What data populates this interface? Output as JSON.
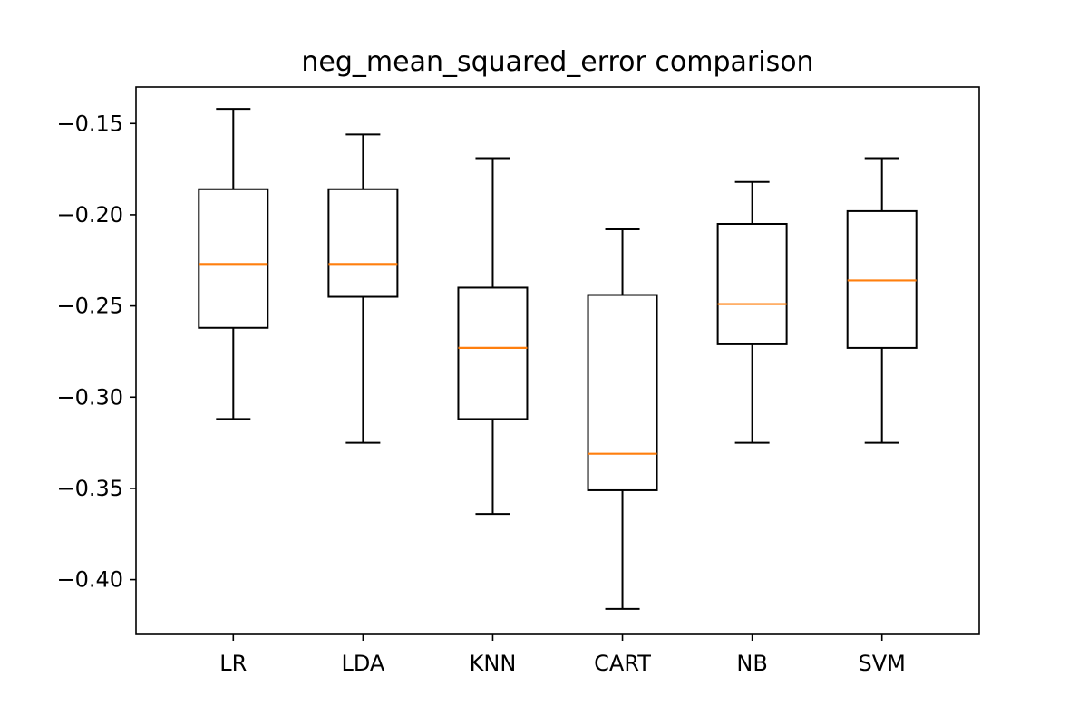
{
  "chart_data": {
    "type": "box",
    "title": "neg_mean_squared_error comparison",
    "xlabel": "",
    "ylabel": "",
    "ylim": [
      -0.43,
      -0.13
    ],
    "yticks": [
      -0.4,
      -0.35,
      -0.3,
      -0.25,
      -0.2,
      -0.15
    ],
    "ytick_labels": [
      "−0.40",
      "−0.35",
      "−0.30",
      "−0.25",
      "−0.20",
      "−0.15"
    ],
    "categories": [
      "LR",
      "LDA",
      "KNN",
      "CART",
      "NB",
      "SVM"
    ],
    "boxes": [
      {
        "label": "LR",
        "whisker_low": -0.312,
        "q1": -0.262,
        "median": -0.227,
        "q3": -0.186,
        "whisker_high": -0.142
      },
      {
        "label": "LDA",
        "whisker_low": -0.325,
        "q1": -0.245,
        "median": -0.227,
        "q3": -0.186,
        "whisker_high": -0.156
      },
      {
        "label": "KNN",
        "whisker_low": -0.364,
        "q1": -0.312,
        "median": -0.273,
        "q3": -0.24,
        "whisker_high": -0.169
      },
      {
        "label": "CART",
        "whisker_low": -0.416,
        "q1": -0.351,
        "median": -0.331,
        "q3": -0.244,
        "whisker_high": -0.208
      },
      {
        "label": "NB",
        "whisker_low": -0.325,
        "q1": -0.271,
        "median": -0.249,
        "q3": -0.205,
        "whisker_high": -0.182
      },
      {
        "label": "SVM",
        "whisker_low": -0.325,
        "q1": -0.273,
        "median": -0.236,
        "q3": -0.198,
        "whisker_high": -0.169
      }
    ],
    "grid": false,
    "colors": {
      "box": "#000000",
      "median": "#ff7f0e",
      "whisker": "#000000"
    }
  }
}
